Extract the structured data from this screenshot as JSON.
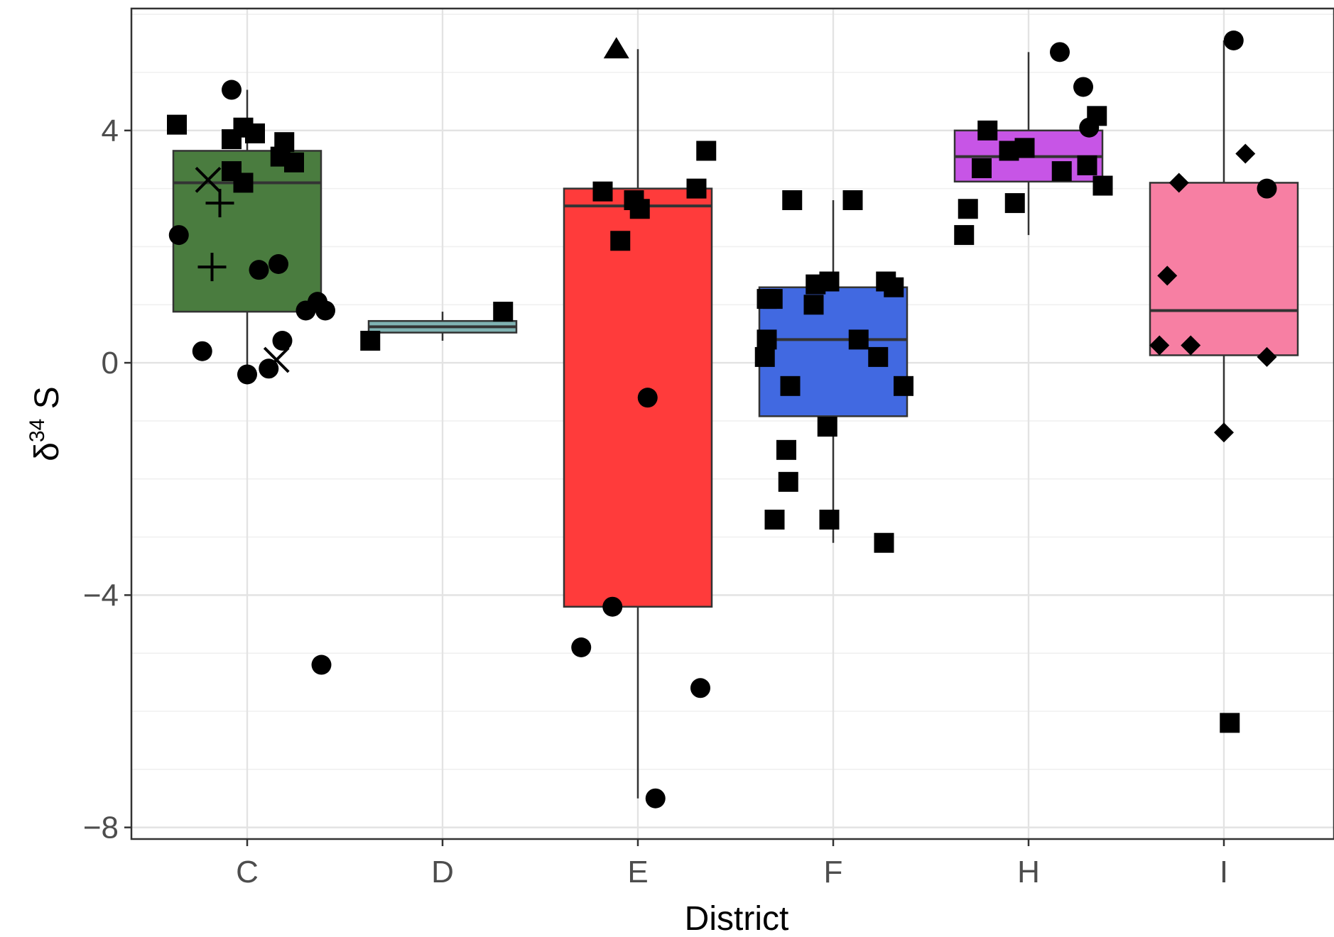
{
  "chart_data": {
    "type": "box",
    "xlabel": "District",
    "ylabel": {
      "symbol": "δ",
      "superscript": "34",
      "suffix": " S"
    },
    "ylim": [
      -8.2,
      6.1
    ],
    "yticks": [
      -8,
      -4,
      0,
      4
    ],
    "ytick_labels": [
      "−8",
      "−4",
      "0",
      "4"
    ],
    "grid": true,
    "categories": [
      "C",
      "D",
      "E",
      "F",
      "H",
      "I"
    ],
    "boxes": [
      {
        "category": "C",
        "color": "#4a7c3f",
        "q1": 0.88,
        "median": 3.1,
        "q3": 3.65,
        "whisker_low": -0.2,
        "whisker_high": 4.7
      },
      {
        "category": "D",
        "color": "#7fb2b2",
        "q1": 0.52,
        "median": 0.62,
        "q3": 0.72,
        "whisker_low": 0.38,
        "whisker_high": 0.88
      },
      {
        "category": "E",
        "color": "#ff3b3b",
        "q1": -4.2,
        "median": 2.7,
        "q3": 3.0,
        "whisker_low": -7.5,
        "whisker_high": 5.4
      },
      {
        "category": "F",
        "color": "#4169e1",
        "q1": -0.92,
        "median": 0.4,
        "q3": 1.3,
        "whisker_low": -3.1,
        "whisker_high": 2.8
      },
      {
        "category": "H",
        "color": "#c755e6",
        "q1": 3.12,
        "median": 3.55,
        "q3": 4.0,
        "whisker_low": 2.2,
        "whisker_high": 5.35
      },
      {
        "category": "I",
        "color": "#f77fa3",
        "q1": 0.13,
        "median": 0.9,
        "q3": 3.1,
        "whisker_low": -1.2,
        "whisker_high": 5.55
      }
    ],
    "points": [
      {
        "category": "C",
        "shape": "square",
        "x_offset": -0.36,
        "y": 4.1
      },
      {
        "category": "C",
        "shape": "circle",
        "x_offset": -0.08,
        "y": 4.7
      },
      {
        "category": "C",
        "shape": "square",
        "x_offset": -0.08,
        "y": 3.85
      },
      {
        "category": "C",
        "shape": "square",
        "x_offset": -0.02,
        "y": 4.05
      },
      {
        "category": "C",
        "shape": "square",
        "x_offset": 0.04,
        "y": 3.95
      },
      {
        "category": "C",
        "shape": "square",
        "x_offset": 0.19,
        "y": 3.8
      },
      {
        "category": "C",
        "shape": "square",
        "x_offset": 0.17,
        "y": 3.55
      },
      {
        "category": "C",
        "shape": "square",
        "x_offset": 0.24,
        "y": 3.45
      },
      {
        "category": "C",
        "shape": "square",
        "x_offset": -0.08,
        "y": 3.3
      },
      {
        "category": "C",
        "shape": "square",
        "x_offset": -0.02,
        "y": 3.1
      },
      {
        "category": "C",
        "shape": "x",
        "x_offset": -0.2,
        "y": 3.15
      },
      {
        "category": "C",
        "shape": "plus",
        "x_offset": -0.14,
        "y": 2.75
      },
      {
        "category": "C",
        "shape": "circle",
        "x_offset": -0.35,
        "y": 2.2
      },
      {
        "category": "C",
        "shape": "plus",
        "x_offset": -0.18,
        "y": 1.65
      },
      {
        "category": "C",
        "shape": "circle",
        "x_offset": 0.06,
        "y": 1.6
      },
      {
        "category": "C",
        "shape": "circle",
        "x_offset": 0.16,
        "y": 1.7
      },
      {
        "category": "C",
        "shape": "circle",
        "x_offset": 0.3,
        "y": 0.9
      },
      {
        "category": "C",
        "shape": "circle",
        "x_offset": 0.36,
        "y": 1.05
      },
      {
        "category": "C",
        "shape": "circle",
        "x_offset": 0.4,
        "y": 0.9
      },
      {
        "category": "C",
        "shape": "circle",
        "x_offset": -0.23,
        "y": 0.2
      },
      {
        "category": "C",
        "shape": "circle",
        "x_offset": 0.18,
        "y": 0.38
      },
      {
        "category": "C",
        "shape": "x",
        "x_offset": 0.15,
        "y": 0.05
      },
      {
        "category": "C",
        "shape": "circle",
        "x_offset": 0.0,
        "y": -0.2
      },
      {
        "category": "C",
        "shape": "circle",
        "x_offset": 0.11,
        "y": -0.1
      },
      {
        "category": "C",
        "shape": "circle",
        "x_offset": 0.38,
        "y": -5.2
      },
      {
        "category": "D",
        "shape": "square",
        "x_offset": -0.37,
        "y": 0.38
      },
      {
        "category": "D",
        "shape": "square",
        "x_offset": 0.31,
        "y": 0.88
      },
      {
        "category": "E",
        "shape": "triangle",
        "x_offset": -0.11,
        "y": 5.4
      },
      {
        "category": "E",
        "shape": "square",
        "x_offset": 0.35,
        "y": 3.65
      },
      {
        "category": "E",
        "shape": "square",
        "x_offset": -0.18,
        "y": 2.95
      },
      {
        "category": "E",
        "shape": "square",
        "x_offset": -0.02,
        "y": 2.8
      },
      {
        "category": "E",
        "shape": "square",
        "x_offset": 0.01,
        "y": 2.65
      },
      {
        "category": "E",
        "shape": "square",
        "x_offset": 0.3,
        "y": 3.0
      },
      {
        "category": "E",
        "shape": "square",
        "x_offset": -0.09,
        "y": 2.1
      },
      {
        "category": "E",
        "shape": "circle",
        "x_offset": 0.05,
        "y": -0.6
      },
      {
        "category": "E",
        "shape": "circle",
        "x_offset": -0.13,
        "y": -4.2
      },
      {
        "category": "E",
        "shape": "circle",
        "x_offset": -0.29,
        "y": -4.9
      },
      {
        "category": "E",
        "shape": "circle",
        "x_offset": 0.32,
        "y": -5.6
      },
      {
        "category": "E",
        "shape": "circle",
        "x_offset": 0.09,
        "y": -7.5
      },
      {
        "category": "F",
        "shape": "square",
        "x_offset": -0.21,
        "y": 2.8
      },
      {
        "category": "F",
        "shape": "square",
        "x_offset": 0.1,
        "y": 2.8
      },
      {
        "category": "F",
        "shape": "square",
        "x_offset": -0.34,
        "y": 1.1
      },
      {
        "category": "F",
        "shape": "square",
        "x_offset": -0.31,
        "y": 1.1
      },
      {
        "category": "F",
        "shape": "square",
        "x_offset": -0.09,
        "y": 1.35
      },
      {
        "category": "F",
        "shape": "square",
        "x_offset": -0.02,
        "y": 1.4
      },
      {
        "category": "F",
        "shape": "square",
        "x_offset": -0.1,
        "y": 1.0
      },
      {
        "category": "F",
        "shape": "square",
        "x_offset": 0.27,
        "y": 1.4
      },
      {
        "category": "F",
        "shape": "square",
        "x_offset": 0.31,
        "y": 1.3
      },
      {
        "category": "F",
        "shape": "square",
        "x_offset": -0.34,
        "y": 0.4
      },
      {
        "category": "F",
        "shape": "square",
        "x_offset": -0.35,
        "y": 0.1
      },
      {
        "category": "F",
        "shape": "square",
        "x_offset": 0.13,
        "y": 0.4
      },
      {
        "category": "F",
        "shape": "square",
        "x_offset": 0.23,
        "y": 0.1
      },
      {
        "category": "F",
        "shape": "square",
        "x_offset": -0.22,
        "y": -0.4
      },
      {
        "category": "F",
        "shape": "square",
        "x_offset": 0.36,
        "y": -0.4
      },
      {
        "category": "F",
        "shape": "square",
        "x_offset": -0.03,
        "y": -1.1
      },
      {
        "category": "F",
        "shape": "square",
        "x_offset": -0.24,
        "y": -1.5
      },
      {
        "category": "F",
        "shape": "square",
        "x_offset": -0.23,
        "y": -2.05
      },
      {
        "category": "F",
        "shape": "square",
        "x_offset": -0.3,
        "y": -2.7
      },
      {
        "category": "F",
        "shape": "square",
        "x_offset": -0.02,
        "y": -2.7
      },
      {
        "category": "F",
        "shape": "square",
        "x_offset": 0.26,
        "y": -3.1
      },
      {
        "category": "H",
        "shape": "circle",
        "x_offset": 0.16,
        "y": 5.35
      },
      {
        "category": "H",
        "shape": "circle",
        "x_offset": 0.28,
        "y": 4.75
      },
      {
        "category": "H",
        "shape": "square",
        "x_offset": 0.35,
        "y": 4.25
      },
      {
        "category": "H",
        "shape": "circle",
        "x_offset": 0.31,
        "y": 4.05
      },
      {
        "category": "H",
        "shape": "square",
        "x_offset": -0.21,
        "y": 4.0
      },
      {
        "category": "H",
        "shape": "square",
        "x_offset": -0.1,
        "y": 3.65
      },
      {
        "category": "H",
        "shape": "square",
        "x_offset": -0.02,
        "y": 3.7
      },
      {
        "category": "H",
        "shape": "square",
        "x_offset": -0.24,
        "y": 3.35
      },
      {
        "category": "H",
        "shape": "square",
        "x_offset": 0.17,
        "y": 3.3
      },
      {
        "category": "H",
        "shape": "square",
        "x_offset": 0.3,
        "y": 3.4
      },
      {
        "category": "H",
        "shape": "square",
        "x_offset": 0.38,
        "y": 3.05
      },
      {
        "category": "H",
        "shape": "square",
        "x_offset": -0.31,
        "y": 2.65
      },
      {
        "category": "H",
        "shape": "square",
        "x_offset": -0.07,
        "y": 2.75
      },
      {
        "category": "H",
        "shape": "square",
        "x_offset": -0.33,
        "y": 2.2
      },
      {
        "category": "I",
        "shape": "circle",
        "x_offset": 0.05,
        "y": 5.55
      },
      {
        "category": "I",
        "shape": "diamond",
        "x_offset": 0.11,
        "y": 3.6
      },
      {
        "category": "I",
        "shape": "diamond",
        "x_offset": -0.23,
        "y": 3.1
      },
      {
        "category": "I",
        "shape": "circle",
        "x_offset": 0.22,
        "y": 3.0
      },
      {
        "category": "I",
        "shape": "diamond",
        "x_offset": -0.29,
        "y": 1.5
      },
      {
        "category": "I",
        "shape": "diamond",
        "x_offset": -0.33,
        "y": 0.3
      },
      {
        "category": "I",
        "shape": "diamond",
        "x_offset": -0.17,
        "y": 0.3
      },
      {
        "category": "I",
        "shape": "diamond",
        "x_offset": 0.22,
        "y": 0.1
      },
      {
        "category": "I",
        "shape": "diamond",
        "x_offset": 0.0,
        "y": -1.2
      },
      {
        "category": "I",
        "shape": "square",
        "x_offset": 0.03,
        "y": -6.2
      }
    ]
  }
}
